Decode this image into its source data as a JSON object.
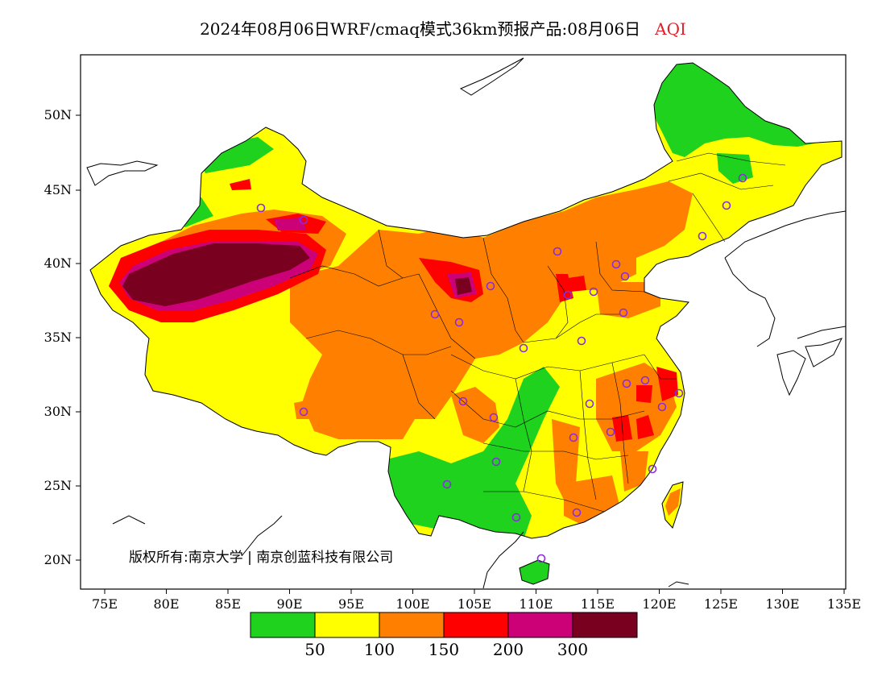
{
  "title": {
    "main": "2024年08月06日WRF/cmaq模式36km预报产品:08月06日",
    "variable": "AQI",
    "variable_color": "#e0202a"
  },
  "axes": {
    "lat_labels": [
      "50N",
      "45N",
      "40N",
      "35N",
      "30N",
      "25N",
      "20N"
    ],
    "lon_labels": [
      "75E",
      "80E",
      "85E",
      "90E",
      "95E",
      "100E",
      "105E",
      "110E",
      "115E",
      "120E",
      "125E",
      "130E",
      "135E"
    ]
  },
  "copyright": "版权所有:南京大学 | 南京创蓝科技有限公司",
  "legend": {
    "colors": [
      "#1ed21e",
      "#ffff00",
      "#ff8000",
      "#ff0000",
      "#cc0077",
      "#7a0020"
    ],
    "ticks": [
      "50",
      "100",
      "150",
      "200",
      "300"
    ]
  },
  "station_marker_color": "#8a2be2",
  "outline_color": "#000000"
}
